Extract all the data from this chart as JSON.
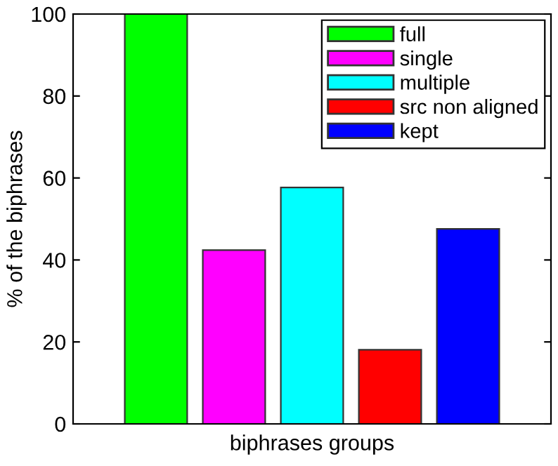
{
  "chart_data": {
    "type": "bar",
    "xlabel": "biphrases groups",
    "ylabel": "% of the biphrases",
    "categories": [
      null
    ],
    "series": [
      {
        "name": "full",
        "color": "#00ff00",
        "values": [
          100
        ]
      },
      {
        "name": "single",
        "color": "#ff00ff",
        "values": [
          42.4
        ]
      },
      {
        "name": "multiple",
        "color": "#00ffff",
        "values": [
          57.7
        ]
      },
      {
        "name": "src non aligned",
        "color": "#ff0000",
        "values": [
          18.1
        ]
      },
      {
        "name": "kept",
        "color": "#0000ff",
        "values": [
          47.6
        ]
      }
    ],
    "ylim": [
      0,
      100
    ],
    "yticks": [
      0,
      20,
      40,
      60,
      80,
      100
    ],
    "grid": false,
    "legend": "top right"
  }
}
